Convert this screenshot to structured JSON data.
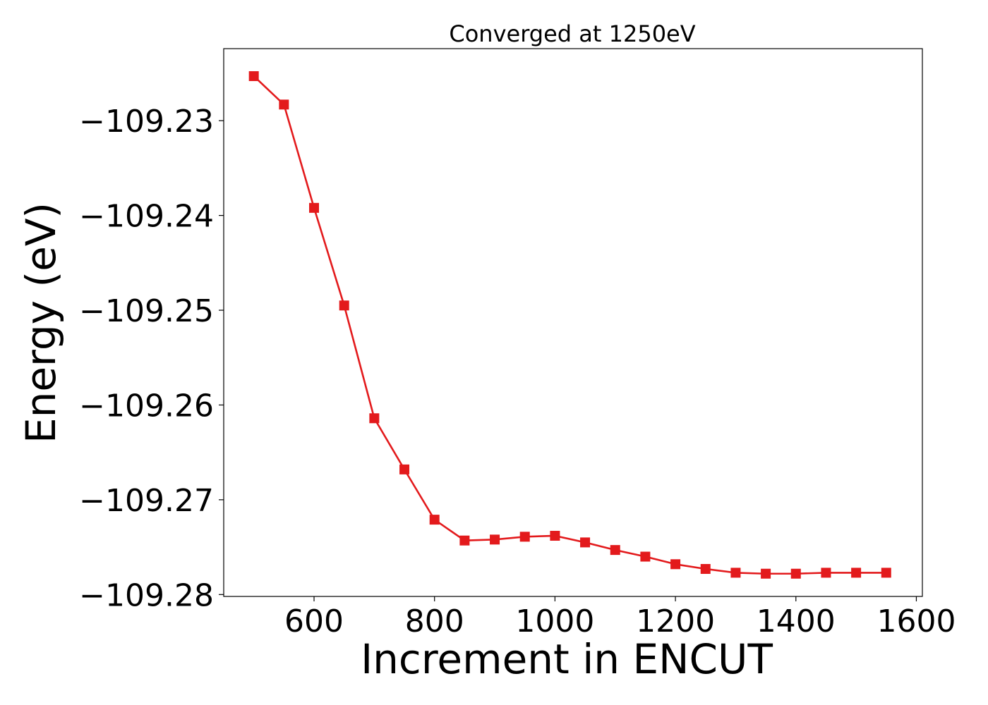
{
  "chart_data": {
    "type": "line",
    "title": "Converged at 1250eV",
    "xlabel": "Increment in ENCUT",
    "ylabel": "Energy (eV)",
    "xlim": [
      450,
      1610
    ],
    "ylim": [
      -109.2802,
      -109.2224
    ],
    "xticks": [
      600,
      800,
      1000,
      1200,
      1400,
      1600
    ],
    "xtick_labels": [
      "600",
      "800",
      "1000",
      "1200",
      "1400",
      "1600"
    ],
    "yticks": [
      -109.23,
      -109.24,
      -109.25,
      -109.26,
      -109.27,
      -109.28
    ],
    "ytick_labels": [
      "−109.23",
      "−109.24",
      "−109.25",
      "−109.26",
      "−109.27",
      "−109.28"
    ],
    "grid": false,
    "series": [
      {
        "color": "#e31a1c",
        "marker": "square",
        "x": [
          500,
          550,
          600,
          650,
          700,
          750,
          800,
          850,
          900,
          950,
          1000,
          1050,
          1100,
          1150,
          1200,
          1250,
          1300,
          1350,
          1400,
          1450,
          1500,
          1550
        ],
        "y": [
          -109.2253,
          -109.2283,
          -109.2392,
          -109.2495,
          -109.2614,
          -109.2668,
          -109.2721,
          -109.2743,
          -109.2742,
          -109.2739,
          -109.2738,
          -109.2745,
          -109.2753,
          -109.276,
          -109.2768,
          -109.2773,
          -109.2777,
          -109.2778,
          -109.2778,
          -109.2777,
          -109.2777,
          -109.2777
        ]
      }
    ]
  }
}
